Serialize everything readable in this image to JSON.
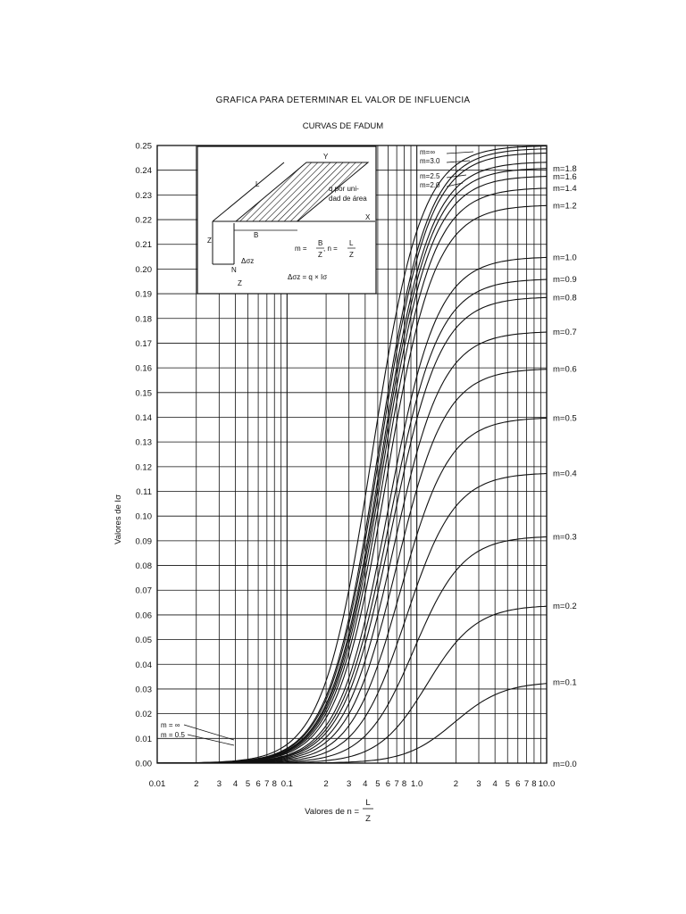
{
  "title": "GRAFICA PARA DETERMINAR EL VALOR DE INFLUENCIA",
  "subtitle": "CURVAS DE FADUM",
  "chart_data": {
    "type": "line",
    "title": "GRAFICA PARA DETERMINAR EL VALOR DE INFLUENCIA",
    "subtitle": "CURVAS DE FADUM",
    "xlabel_prefix": "Valores de n =",
    "xlabel_num": "L",
    "xlabel_den": "Z",
    "ylabel": "Valores de Iσ",
    "xscale": "log",
    "xlim": [
      0.01,
      10.0
    ],
    "ylim": [
      0.0,
      0.25
    ],
    "grid": true,
    "y_ticks": [
      "0.00",
      "0.01",
      "0.02",
      "0.03",
      "0.04",
      "0.05",
      "0.06",
      "0.07",
      "0.08",
      "0.09",
      "0.10",
      "0.11",
      "0.12",
      "0.13",
      "0.14",
      "0.15",
      "0.16",
      "0.17",
      "0.18",
      "0.19",
      "0.20",
      "0.21",
      "0.22",
      "0.23",
      "0.24",
      "0.25"
    ],
    "x_tick_labels": [
      {
        "x": 0.01,
        "label": "0.01"
      },
      {
        "x": 0.02,
        "label": "2"
      },
      {
        "x": 0.03,
        "label": "3"
      },
      {
        "x": 0.04,
        "label": "4"
      },
      {
        "x": 0.05,
        "label": "5"
      },
      {
        "x": 0.06,
        "label": "6"
      },
      {
        "x": 0.07,
        "label": "7"
      },
      {
        "x": 0.08,
        "label": "8"
      },
      {
        "x": 0.1,
        "label": "0.1"
      },
      {
        "x": 0.2,
        "label": "2"
      },
      {
        "x": 0.3,
        "label": "3"
      },
      {
        "x": 0.4,
        "label": "4"
      },
      {
        "x": 0.5,
        "label": "5"
      },
      {
        "x": 0.6,
        "label": "6"
      },
      {
        "x": 0.7,
        "label": "7"
      },
      {
        "x": 0.8,
        "label": "8"
      },
      {
        "x": 1.0,
        "label": "1.0"
      },
      {
        "x": 2.0,
        "label": "2"
      },
      {
        "x": 3.0,
        "label": "3"
      },
      {
        "x": 4.0,
        "label": "4"
      },
      {
        "x": 5.0,
        "label": "5"
      },
      {
        "x": 6.0,
        "label": "6"
      },
      {
        "x": 7.0,
        "label": "7"
      },
      {
        "x": 8.0,
        "label": "8"
      },
      {
        "x": 10.0,
        "label": "10.0"
      }
    ],
    "series": [
      {
        "name": "m=∞",
        "m": "inf",
        "asymptote": 0.25,
        "label_side": "top"
      },
      {
        "name": "m=3.0",
        "m": 3.0,
        "asymptote": 0.2489,
        "label_side": "top"
      },
      {
        "name": "m=2.5",
        "m": 2.5,
        "asymptote": 0.2472,
        "label_side": "top"
      },
      {
        "name": "m=2.0",
        "m": 2.0,
        "asymptote": 0.2435,
        "label_side": "top"
      },
      {
        "name": "m=1.8",
        "m": 1.8,
        "asymptote": 0.241,
        "label_side": "right"
      },
      {
        "name": "m=1.6",
        "m": 1.6,
        "asymptote": 0.2378,
        "label_side": "right"
      },
      {
        "name": "m=1.4",
        "m": 1.4,
        "asymptote": 0.233,
        "label_side": "right"
      },
      {
        "name": "m=1.2",
        "m": 1.2,
        "asymptote": 0.226,
        "label_side": "right"
      },
      {
        "name": "m=1.0",
        "m": 1.0,
        "asymptote": 0.205,
        "label_side": "right"
      },
      {
        "name": "m=0.9",
        "m": 0.9,
        "asymptote": 0.1961,
        "label_side": "right"
      },
      {
        "name": "m=0.8",
        "m": 0.8,
        "asymptote": 0.1888,
        "label_side": "right"
      },
      {
        "name": "m=0.7",
        "m": 0.7,
        "asymptote": 0.1748,
        "label_side": "right"
      },
      {
        "name": "m=0.6",
        "m": 0.6,
        "asymptote": 0.1598,
        "label_side": "right"
      },
      {
        "name": "m=0.5",
        "m": 0.5,
        "asymptote": 0.14,
        "label_side": "right"
      },
      {
        "name": "m=0.4",
        "m": 0.4,
        "asymptote": 0.1176,
        "label_side": "right"
      },
      {
        "name": "m=0.3",
        "m": 0.3,
        "asymptote": 0.092,
        "label_side": "right"
      },
      {
        "name": "m=0.2",
        "m": 0.2,
        "asymptote": 0.064,
        "label_side": "right"
      },
      {
        "name": "m=0.1",
        "m": 0.1,
        "asymptote": 0.033,
        "label_side": "right"
      },
      {
        "name": "m=0.0",
        "m": 0.0,
        "asymptote": 0.0,
        "label_side": "right"
      }
    ],
    "left_annotations": [
      "m = ∞",
      "m = 0.5"
    ]
  },
  "inset": {
    "axis_y": "Y",
    "axis_x": "X",
    "axis_z": "Z",
    "dim_L": "L",
    "dim_B": "B",
    "point_N": "N",
    "axis_z_bottom": "Z",
    "delta_sigma": "Δσz",
    "load_line1": "q por uni-",
    "load_line2": "dad de área",
    "formula_m": "m =",
    "formula_m_num": "B",
    "formula_m_den": "Z",
    "formula_n": ", n =",
    "formula_n_num": "L",
    "formula_n_den": "Z",
    "formula_delta": "Δσz = q × Iσ"
  }
}
